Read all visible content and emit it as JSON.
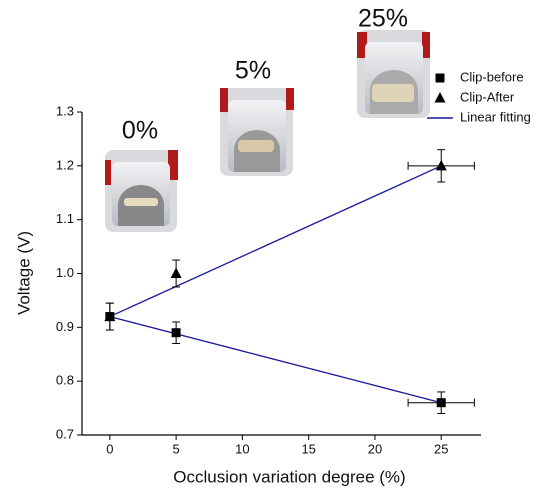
{
  "chart_data": {
    "type": "scatter",
    "x_label": "Occlusion variation degree (%)",
    "y_label": "Voltage (V)",
    "xlim": [
      -2.1,
      28
    ],
    "ylim": [
      0.7,
      1.3
    ],
    "xticks": [
      0,
      5,
      10,
      15,
      20,
      25
    ],
    "yticks": [
      {
        "value": 0.7,
        "label": "0.7"
      },
      {
        "value": 0.8,
        "label": "0.8"
      },
      {
        "value": 0.9,
        "label": "0.9"
      },
      {
        "value": 1.0,
        "label": "1.0"
      },
      {
        "value": 1.1,
        "label": "1.1"
      },
      {
        "value": 1.2,
        "label": "1.2"
      },
      {
        "value": 1.3,
        "label": "1.3"
      }
    ],
    "annotations": [
      "0%",
      "5%",
      "25%"
    ],
    "legend": "upper right",
    "series": [
      {
        "name": "Clip-before",
        "marker": "square",
        "color": "#000000",
        "x": [
          0,
          5,
          25
        ],
        "values": [
          0.92,
          0.89,
          0.76
        ],
        "y_err": [
          0.025,
          0.02,
          0.02
        ],
        "x_err": [
          0,
          0,
          2.5
        ]
      },
      {
        "name": "Clip-After",
        "marker": "triangle",
        "color": "#000000",
        "x": [
          0,
          5,
          25
        ],
        "values": [
          0.92,
          1.0,
          1.2
        ],
        "y_err": [
          0.025,
          0.025,
          0.03
        ],
        "x_err": [
          0,
          0,
          2.5
        ]
      },
      {
        "name": "Linear fitting",
        "marker": "line",
        "color": "#1a1a9c",
        "lines": [
          {
            "x": [
              0,
              25
            ],
            "values": [
              0.92,
              0.76
            ]
          },
          {
            "x": [
              0,
              25
            ],
            "values": [
              0.92,
              1.2
            ]
          }
        ]
      }
    ]
  }
}
